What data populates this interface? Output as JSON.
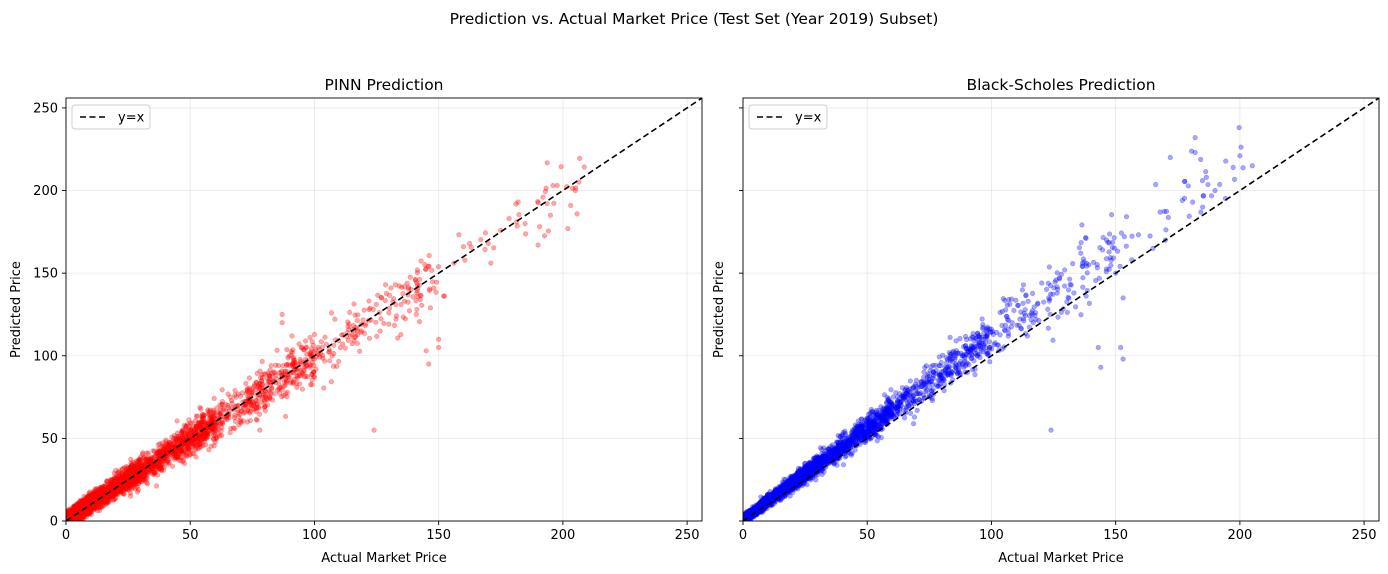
{
  "figure": {
    "suptitle": "Prediction vs. Actual Market Price (Test Set (Year 2019) Subset)"
  },
  "chart_data": [
    {
      "type": "scatter",
      "title": "PINN Prediction",
      "xlabel": "Actual Market Price",
      "ylabel": "Predicted Price",
      "xlim": [
        0,
        256
      ],
      "ylim": [
        0,
        256
      ],
      "xticks": [
        0,
        50,
        100,
        150,
        200,
        250
      ],
      "yticks": [
        0,
        50,
        100,
        150,
        200,
        250
      ],
      "grid": true,
      "legend_position": "upper-left",
      "show_ytick_labels": true,
      "series": [
        {
          "kind": "points",
          "color": "#ff0000",
          "alpha": 0.35,
          "trend": {
            "intercept": 2,
            "slope": 0.98,
            "noise_base": 2,
            "noise_scale": 0.06,
            "bias": -1
          },
          "x_distribution": [
            [
              0,
              10,
              1400
            ],
            [
              10,
              30,
              1100
            ],
            [
              30,
              60,
              700
            ],
            [
              60,
              100,
              380
            ],
            [
              100,
              150,
              160
            ],
            [
              150,
              210,
              40
            ]
          ],
          "outliers": [
            [
              124,
              55
            ],
            [
              150,
              110
            ],
            [
              150,
              105
            ],
            [
              146,
              95
            ],
            [
              145,
              103
            ],
            [
              182,
              193
            ],
            [
              192,
              196
            ],
            [
              196,
              203
            ],
            [
              202,
              177
            ],
            [
              205,
              200
            ],
            [
              195,
              185
            ],
            [
              190,
              167
            ],
            [
              160,
              166
            ],
            [
              170,
              168
            ],
            [
              87,
              120
            ],
            [
              87,
              125
            ],
            [
              73,
              80
            ],
            [
              78,
              55
            ]
          ]
        },
        {
          "kind": "line",
          "name": "y=x",
          "color": "#000000",
          "dash": "6,3.5",
          "points": [
            [
              0,
              0
            ],
            [
              256,
              256
            ]
          ]
        }
      ]
    },
    {
      "type": "scatter",
      "title": "Black-Scholes Prediction",
      "xlabel": "Actual Market Price",
      "ylabel": "Predicted Price",
      "xlim": [
        0,
        256
      ],
      "ylim": [
        0,
        256
      ],
      "xticks": [
        0,
        50,
        100,
        150,
        200,
        250
      ],
      "yticks": [
        0,
        50,
        100,
        150,
        200,
        250
      ],
      "grid": true,
      "legend_position": "upper-left",
      "show_ytick_labels": false,
      "series": [
        {
          "kind": "points",
          "color": "#0000ff",
          "alpha": 0.35,
          "trend": {
            "intercept": 0,
            "slope": 1.1,
            "noise_base": 1,
            "noise_scale": 0.06,
            "bias": 1
          },
          "x_distribution": [
            [
              0,
              10,
              1400
            ],
            [
              10,
              30,
              1100
            ],
            [
              30,
              60,
              700
            ],
            [
              60,
              100,
              380
            ],
            [
              100,
              150,
              160
            ],
            [
              150,
              205,
              40
            ]
          ],
          "outliers": [
            [
              182,
              232
            ],
            [
              182,
              223
            ],
            [
              172,
              220
            ],
            [
              200,
              221
            ],
            [
              205,
              215
            ],
            [
              181,
              193
            ],
            [
              143,
              105
            ],
            [
              144,
              93
            ],
            [
              152,
              105
            ],
            [
              153,
              98
            ],
            [
              124,
              55
            ],
            [
              153,
              135
            ],
            [
              150,
              150
            ],
            [
              165,
              165
            ],
            [
              170,
              170
            ],
            [
              185,
              190
            ],
            [
              190,
              200
            ]
          ]
        },
        {
          "kind": "line",
          "name": "y=x",
          "color": "#000000",
          "dash": "6,3.5",
          "points": [
            [
              0,
              0
            ],
            [
              256,
              256
            ]
          ]
        }
      ]
    }
  ]
}
